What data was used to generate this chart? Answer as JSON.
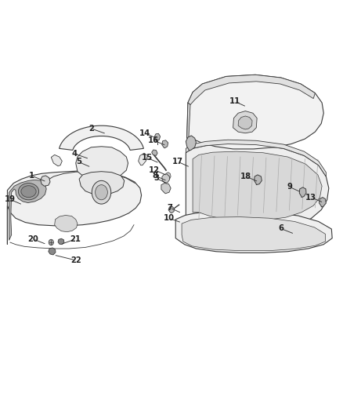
{
  "bg_color": "#ffffff",
  "fig_width": 4.38,
  "fig_height": 5.33,
  "dpi": 100,
  "line_color": "#3a3a3a",
  "text_color": "#222222",
  "callouts": {
    "1": {
      "dot": [
        0.135,
        0.565
      ],
      "text": [
        0.09,
        0.58
      ]
    },
    "2": {
      "dot": [
        0.31,
        0.68
      ],
      "text": [
        0.265,
        0.693
      ]
    },
    "3": {
      "dot": [
        0.49,
        0.56
      ],
      "text": [
        0.455,
        0.574
      ]
    },
    "4": {
      "dot": [
        0.26,
        0.62
      ],
      "text": [
        0.215,
        0.633
      ]
    },
    "5": {
      "dot": [
        0.265,
        0.6
      ],
      "text": [
        0.228,
        0.613
      ]
    },
    "6": {
      "dot": [
        0.86,
        0.44
      ],
      "text": [
        0.82,
        0.453
      ]
    },
    "7": {
      "dot": [
        0.53,
        0.49
      ],
      "text": [
        0.495,
        0.503
      ]
    },
    "8": {
      "dot": [
        0.488,
        0.567
      ],
      "text": [
        0.452,
        0.58
      ]
    },
    "9": {
      "dot": [
        0.88,
        0.54
      ],
      "text": [
        0.845,
        0.553
      ]
    },
    "10": {
      "dot": [
        0.53,
        0.467
      ],
      "text": [
        0.493,
        0.478
      ]
    },
    "11": {
      "dot": [
        0.72,
        0.745
      ],
      "text": [
        0.685,
        0.758
      ]
    },
    "12": {
      "dot": [
        0.488,
        0.58
      ],
      "text": [
        0.45,
        0.594
      ]
    },
    "13": {
      "dot": [
        0.945,
        0.515
      ],
      "text": [
        0.908,
        0.528
      ]
    },
    "14": {
      "dot": [
        0.46,
        0.668
      ],
      "text": [
        0.423,
        0.682
      ]
    },
    "15": {
      "dot": [
        0.465,
        0.61
      ],
      "text": [
        0.428,
        0.623
      ]
    },
    "16": {
      "dot": [
        0.485,
        0.652
      ],
      "text": [
        0.447,
        0.665
      ]
    },
    "17": {
      "dot": [
        0.555,
        0.6
      ],
      "text": [
        0.517,
        0.614
      ]
    },
    "18": {
      "dot": [
        0.755,
        0.565
      ],
      "text": [
        0.718,
        0.578
      ]
    },
    "19": {
      "dot": [
        0.065,
        0.51
      ],
      "text": [
        0.028,
        0.523
      ]
    },
    "20": {
      "dot": [
        0.135,
        0.415
      ],
      "text": [
        0.095,
        0.428
      ]
    },
    "21": {
      "dot": [
        0.175,
        0.415
      ],
      "text": [
        0.22,
        0.428
      ]
    },
    "22": {
      "dot": [
        0.155,
        0.39
      ],
      "text": [
        0.22,
        0.377
      ]
    }
  }
}
